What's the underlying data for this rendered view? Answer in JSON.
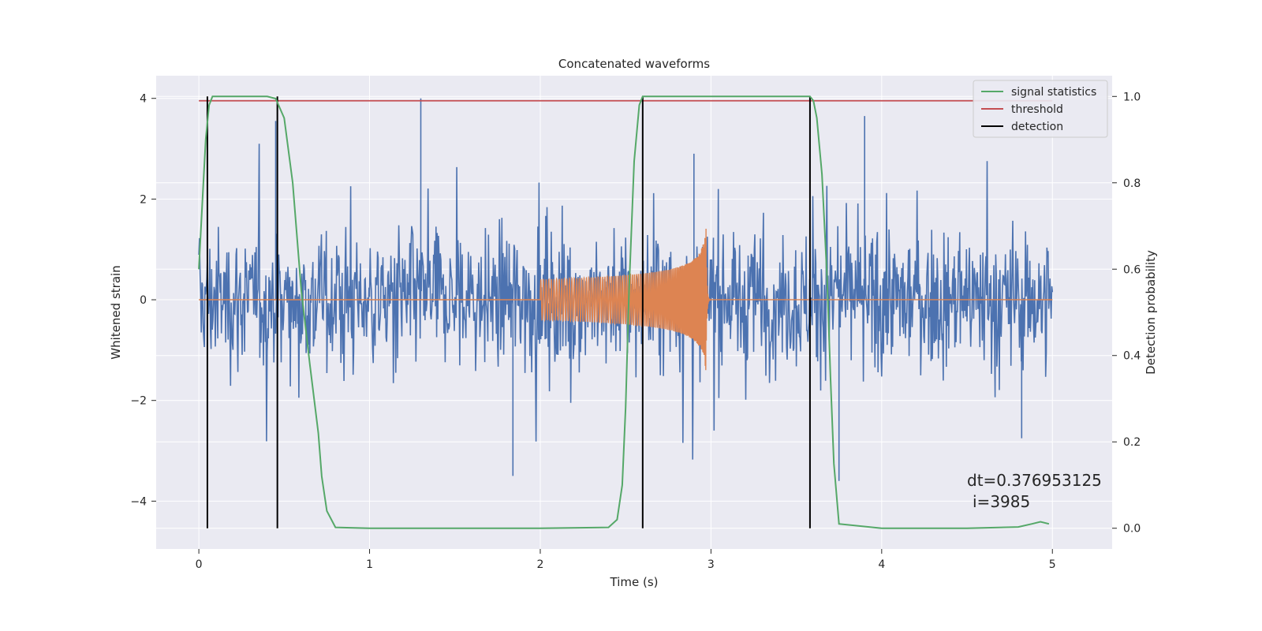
{
  "chart_data": {
    "type": "line",
    "title": "Concatenated waveforms",
    "xlabel": "Time (s)",
    "ylabel": "Whitened strain",
    "y2label": "Detection probability",
    "xlim": [
      -0.25,
      5.35
    ],
    "ylim": [
      -4.95,
      4.45
    ],
    "y2lim": [
      -0.048,
      1.048
    ],
    "xticks": [
      0,
      1,
      2,
      3,
      4,
      5
    ],
    "yticks": [
      -4,
      -2,
      0,
      2,
      4
    ],
    "y2ticks": [
      0.0,
      0.2,
      0.4,
      0.6,
      0.8,
      1.0
    ],
    "ytick_labels": [
      "−4",
      "−2",
      "0",
      "2",
      "4"
    ],
    "y2tick_labels": [
      "0.0",
      "0.2",
      "0.4",
      "0.6",
      "0.8",
      "1.0"
    ],
    "grid": true,
    "legend_position": "top-right",
    "legend": [
      {
        "label": "signal statistics",
        "color": "#55a868"
      },
      {
        "label": "threshold",
        "color": "#c44e52"
      },
      {
        "label": "detection",
        "color": "#000000"
      }
    ],
    "series": [
      {
        "id": "noise",
        "color": "#4c72b0",
        "axis": "left",
        "x_range": [
          0,
          5
        ],
        "approx_envelope": [
          -3.5,
          4.0
        ],
        "note_level": "random whitened noise"
      },
      {
        "id": "chirp",
        "color": "#dd8452",
        "axis": "left",
        "x_range": [
          2.0,
          3.0
        ],
        "start_amplitude": 0.4,
        "peak_amplitude": 1.75,
        "peak_x": 2.97
      },
      {
        "name": "signal statistics",
        "color": "#55a868",
        "axis": "right",
        "x": [
          0,
          0.02,
          0.04,
          0.06,
          0.08,
          0.1,
          0.2,
          0.3,
          0.4,
          0.45,
          0.5,
          0.55,
          0.6,
          0.65,
          0.7,
          0.72,
          0.75,
          0.8,
          1.0,
          2.0,
          2.4,
          2.45,
          2.48,
          2.5,
          2.52,
          2.55,
          2.58,
          2.6,
          2.65,
          3.0,
          3.5,
          3.58,
          3.6,
          3.62,
          3.65,
          3.68,
          3.7,
          3.72,
          3.75,
          4.0,
          4.5,
          4.8,
          4.88,
          4.93,
          4.98
        ],
        "y": [
          0.6,
          0.75,
          0.9,
          0.98,
          1.0,
          1.0,
          1.0,
          1.0,
          1.0,
          0.995,
          0.95,
          0.8,
          0.55,
          0.38,
          0.22,
          0.12,
          0.04,
          0.002,
          0.0,
          0.0,
          0.002,
          0.02,
          0.1,
          0.28,
          0.55,
          0.85,
          0.98,
          1.0,
          1.0,
          1.0,
          1.0,
          1.0,
          0.99,
          0.95,
          0.82,
          0.58,
          0.35,
          0.15,
          0.01,
          0.0,
          0.0,
          0.003,
          0.01,
          0.015,
          0.01
        ]
      },
      {
        "name": "threshold",
        "color": "#c44e52",
        "axis": "right",
        "x": [
          0,
          5
        ],
        "y": [
          0.99,
          0.99
        ]
      },
      {
        "name": "detection",
        "color": "#000000",
        "axis": "right",
        "type": "vlines",
        "x": [
          0.05,
          0.46,
          2.6,
          3.58
        ],
        "ymin": 0.0,
        "ymax": 1.0
      }
    ],
    "annotations": [
      {
        "text": "dt=0.376953125",
        "x": 4.53,
        "y": -3.55
      },
      {
        "text": "i=3985",
        "x": 4.56,
        "y": -3.97
      }
    ]
  }
}
